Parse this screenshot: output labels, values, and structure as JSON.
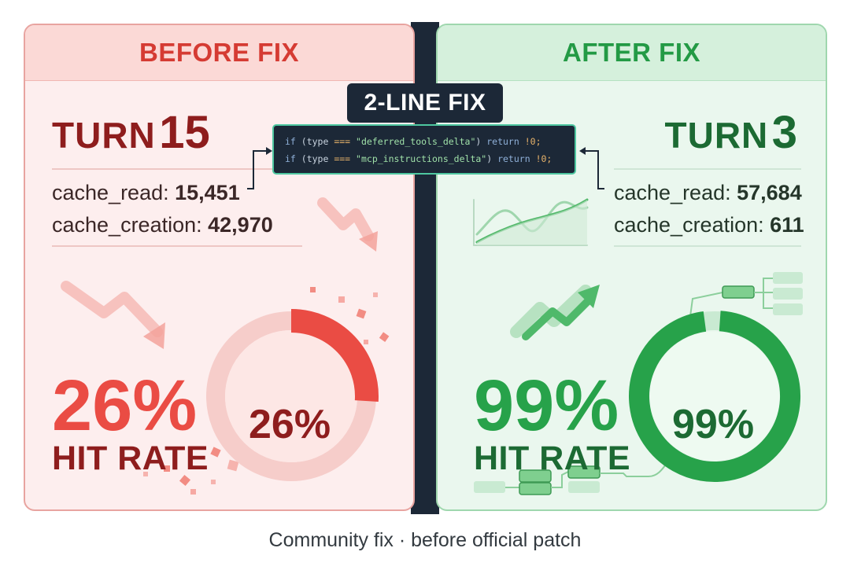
{
  "before": {
    "header": "BEFORE FIX",
    "turn_word": "TURN",
    "turn_number": "15",
    "cache_read_label": "cache_read:",
    "cache_read_value": "15,451",
    "cache_creation_label": "cache_creation:",
    "cache_creation_value": "42,970",
    "hit_rate_pct": "26%",
    "hit_rate_label": "HIT RATE",
    "donut_label": "26%",
    "hit_rate_fraction": 0.26,
    "accent_color": "#ea4c44"
  },
  "after": {
    "header": "AFTER FIX",
    "turn_word": "TURN",
    "turn_number": "3",
    "cache_read_label": "cache_read:",
    "cache_read_value": "57,684",
    "cache_creation_label": "cache_creation:",
    "cache_creation_value": "611",
    "hit_rate_pct": "99%",
    "hit_rate_label": "HIT RATE",
    "donut_label": "99%",
    "hit_rate_fraction": 0.99,
    "accent_color": "#27a24a"
  },
  "fix": {
    "badge": "2-LINE FIX",
    "code_lines": [
      "if (type === \"deferred_tools_delta\") return !0;",
      "if (type === \"mcp_instructions_delta\") return !0;"
    ]
  },
  "caption": "Community fix · before official patch",
  "icons": {
    "before_trend": "trend-down-arrow-icon",
    "after_trend": "trend-up-arrow-icon",
    "after_chart": "mini-line-chart-icon",
    "after_flow": "flow-diagram-icon"
  }
}
